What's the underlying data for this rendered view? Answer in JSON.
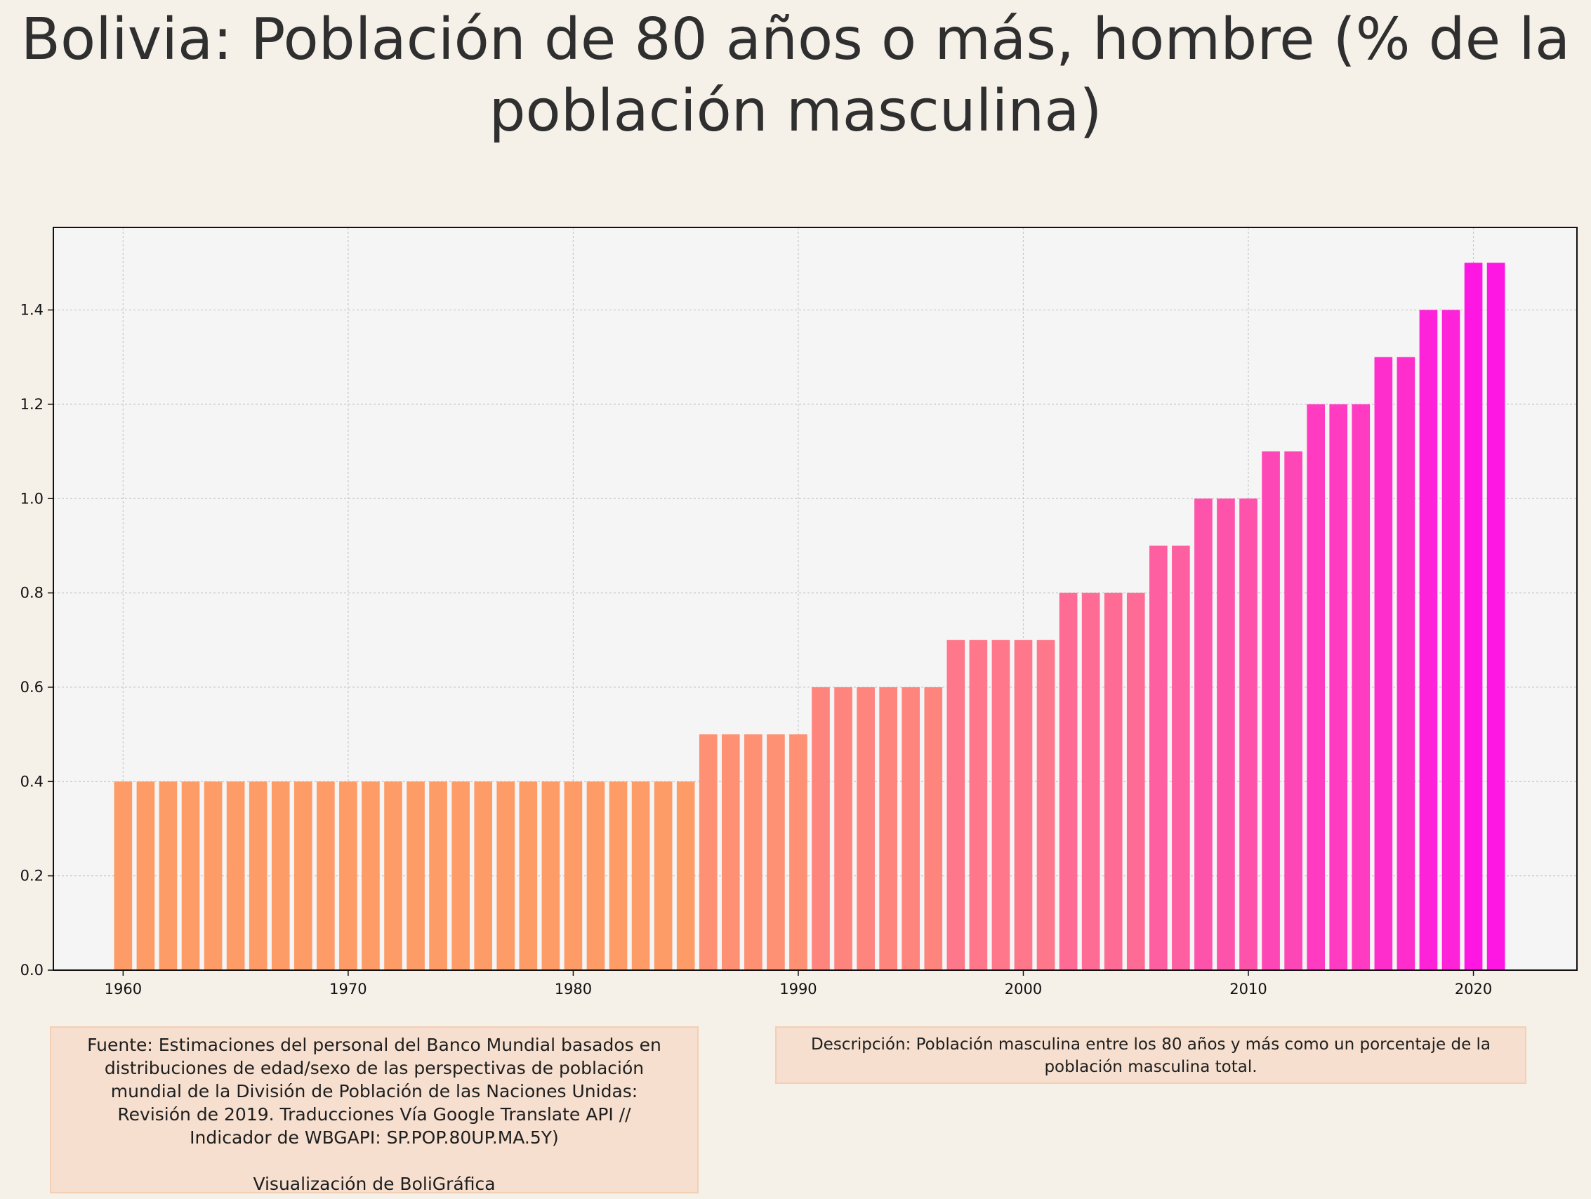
{
  "chart_data": {
    "type": "bar",
    "title": "Bolivia:  Población de 80 años o más, hombre (% de la población masculina)",
    "xlabel": "",
    "ylabel": "",
    "x": [
      1960,
      1961,
      1962,
      1963,
      1964,
      1965,
      1966,
      1967,
      1968,
      1969,
      1970,
      1971,
      1972,
      1973,
      1974,
      1975,
      1976,
      1977,
      1978,
      1979,
      1980,
      1981,
      1982,
      1983,
      1984,
      1985,
      1986,
      1987,
      1988,
      1989,
      1990,
      1991,
      1992,
      1993,
      1994,
      1995,
      1996,
      1997,
      1998,
      1999,
      2000,
      2001,
      2002,
      2003,
      2004,
      2005,
      2006,
      2007,
      2008,
      2009,
      2010,
      2011,
      2012,
      2013,
      2014,
      2015,
      2016,
      2017,
      2018,
      2019,
      2020,
      2021
    ],
    "values": [
      0.4,
      0.4,
      0.4,
      0.4,
      0.4,
      0.4,
      0.4,
      0.4,
      0.4,
      0.4,
      0.4,
      0.4,
      0.4,
      0.4,
      0.4,
      0.4,
      0.4,
      0.4,
      0.4,
      0.4,
      0.4,
      0.4,
      0.4,
      0.4,
      0.4,
      0.4,
      0.5,
      0.5,
      0.5,
      0.5,
      0.5,
      0.6,
      0.6,
      0.6,
      0.6,
      0.6,
      0.6,
      0.7,
      0.7,
      0.7,
      0.7,
      0.7,
      0.8,
      0.8,
      0.8,
      0.8,
      0.9,
      0.9,
      1.0,
      1.0,
      1.0,
      1.1,
      1.1,
      1.2,
      1.2,
      1.2,
      1.3,
      1.3,
      1.4,
      1.4,
      1.5,
      1.5
    ],
    "xlim": [
      1956.9,
      2024.6
    ],
    "ylim": [
      0,
      1.575
    ],
    "x_ticks": [
      "1960",
      "1970",
      "1980",
      "1990",
      "2000",
      "2010",
      "2020"
    ],
    "y_ticks": [
      "0.0",
      "0.2",
      "0.4",
      "0.6",
      "0.8",
      "1.0",
      "1.2",
      "1.4"
    ],
    "grid": true,
    "colors": {
      "low": "#fe9c68",
      "high": "#fe16e3",
      "plot_bg": "#f5f5f5",
      "page_bg": "#f5f0e8",
      "grid": "#c8c8c8"
    }
  },
  "footer": {
    "source_lines": [
      "Fuente: Estimaciones del personal del Banco Mundial basados en",
      "distribuciones de edad/sexo de las perspectivas de población",
      "mundial de la División de Población de las Naciones Unidas:",
      "Revisión de 2019. Traducciones Vía Google Translate API //",
      "Indicador de WBGAPI: SP.POP.80UP.MA.5Y)"
    ],
    "credit": "Visualización de BoliGráfica",
    "description_lines": [
      "Descripción: Población masculina entre los 80 años y más como un porcentaje de la",
      "población masculina total."
    ]
  }
}
